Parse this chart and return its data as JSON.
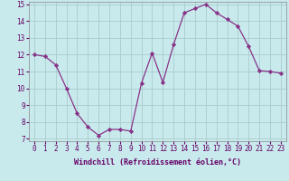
{
  "x": [
    0,
    1,
    2,
    3,
    4,
    5,
    6,
    7,
    8,
    9,
    10,
    11,
    12,
    13,
    14,
    15,
    16,
    17,
    18,
    19,
    20,
    21,
    22,
    23
  ],
  "y": [
    12.0,
    11.9,
    11.4,
    10.0,
    8.5,
    7.7,
    7.2,
    7.55,
    7.55,
    7.45,
    10.3,
    12.1,
    10.35,
    12.6,
    14.5,
    14.75,
    15.0,
    14.5,
    14.1,
    13.7,
    12.5,
    11.05,
    11.0,
    10.9
  ],
  "line_color": "#883388",
  "marker": "D",
  "marker_size": 2.2,
  "bg_color": "#c8eaed",
  "grid_color": "#aacccc",
  "xlabel": "Windchill (Refroidissement éolien,°C)",
  "xlabel_color": "#660066",
  "tick_color": "#660066",
  "ylim_min": 7,
  "ylim_max": 15,
  "xlim_min": -0.5,
  "xlim_max": 23.5,
  "yticks": [
    7,
    8,
    9,
    10,
    11,
    12,
    13,
    14,
    15
  ],
  "xticks": [
    0,
    1,
    2,
    3,
    4,
    5,
    6,
    7,
    8,
    9,
    10,
    11,
    12,
    13,
    14,
    15,
    16,
    17,
    18,
    19,
    20,
    21,
    22,
    23
  ],
  "tick_fontsize": 5.5,
  "xlabel_fontsize": 6.0
}
